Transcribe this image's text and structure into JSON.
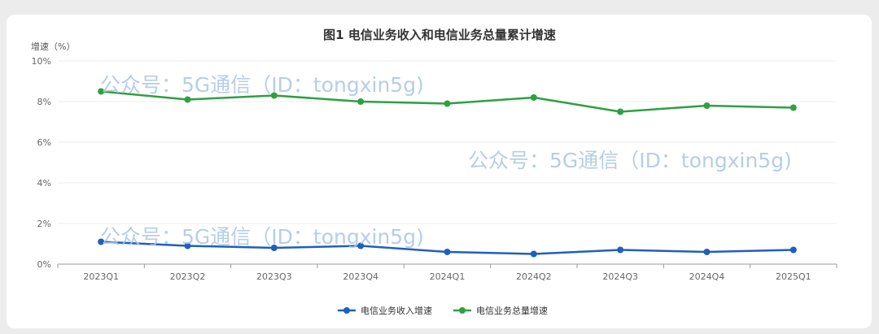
{
  "colors": {
    "background": "#ececec",
    "card": "#ffffff",
    "gridline": "#eeeeee",
    "axis": "#999999",
    "watermark": "#a9c6e2"
  },
  "watermark_text": "公众号：5G通信（ID：tongxin5g)",
  "chart_data": {
    "type": "line",
    "title": "图1 电信业务收入和电信业务总量累计增速",
    "ylabel": "增速（%）",
    "xlabel": "",
    "categories": [
      "2023Q1",
      "2023Q2",
      "2023Q3",
      "2023Q4",
      "2024Q1",
      "2024Q2",
      "2024Q3",
      "2024Q4",
      "2025Q1"
    ],
    "ylim": [
      0,
      10
    ],
    "yticks": [
      "0%",
      "2%",
      "4%",
      "6%",
      "8%",
      "10%"
    ],
    "grid": true,
    "legend_position": "bottom",
    "series": [
      {
        "name": "电信业务收入增速",
        "color": "#1f5fbf",
        "values": [
          1.1,
          0.9,
          0.8,
          0.9,
          0.6,
          0.5,
          0.7,
          0.6,
          0.7
        ]
      },
      {
        "name": "电信业务总量增速",
        "color": "#2ea043",
        "values": [
          8.5,
          8.1,
          8.3,
          8.0,
          7.9,
          8.2,
          7.5,
          7.8,
          7.7
        ]
      }
    ]
  }
}
